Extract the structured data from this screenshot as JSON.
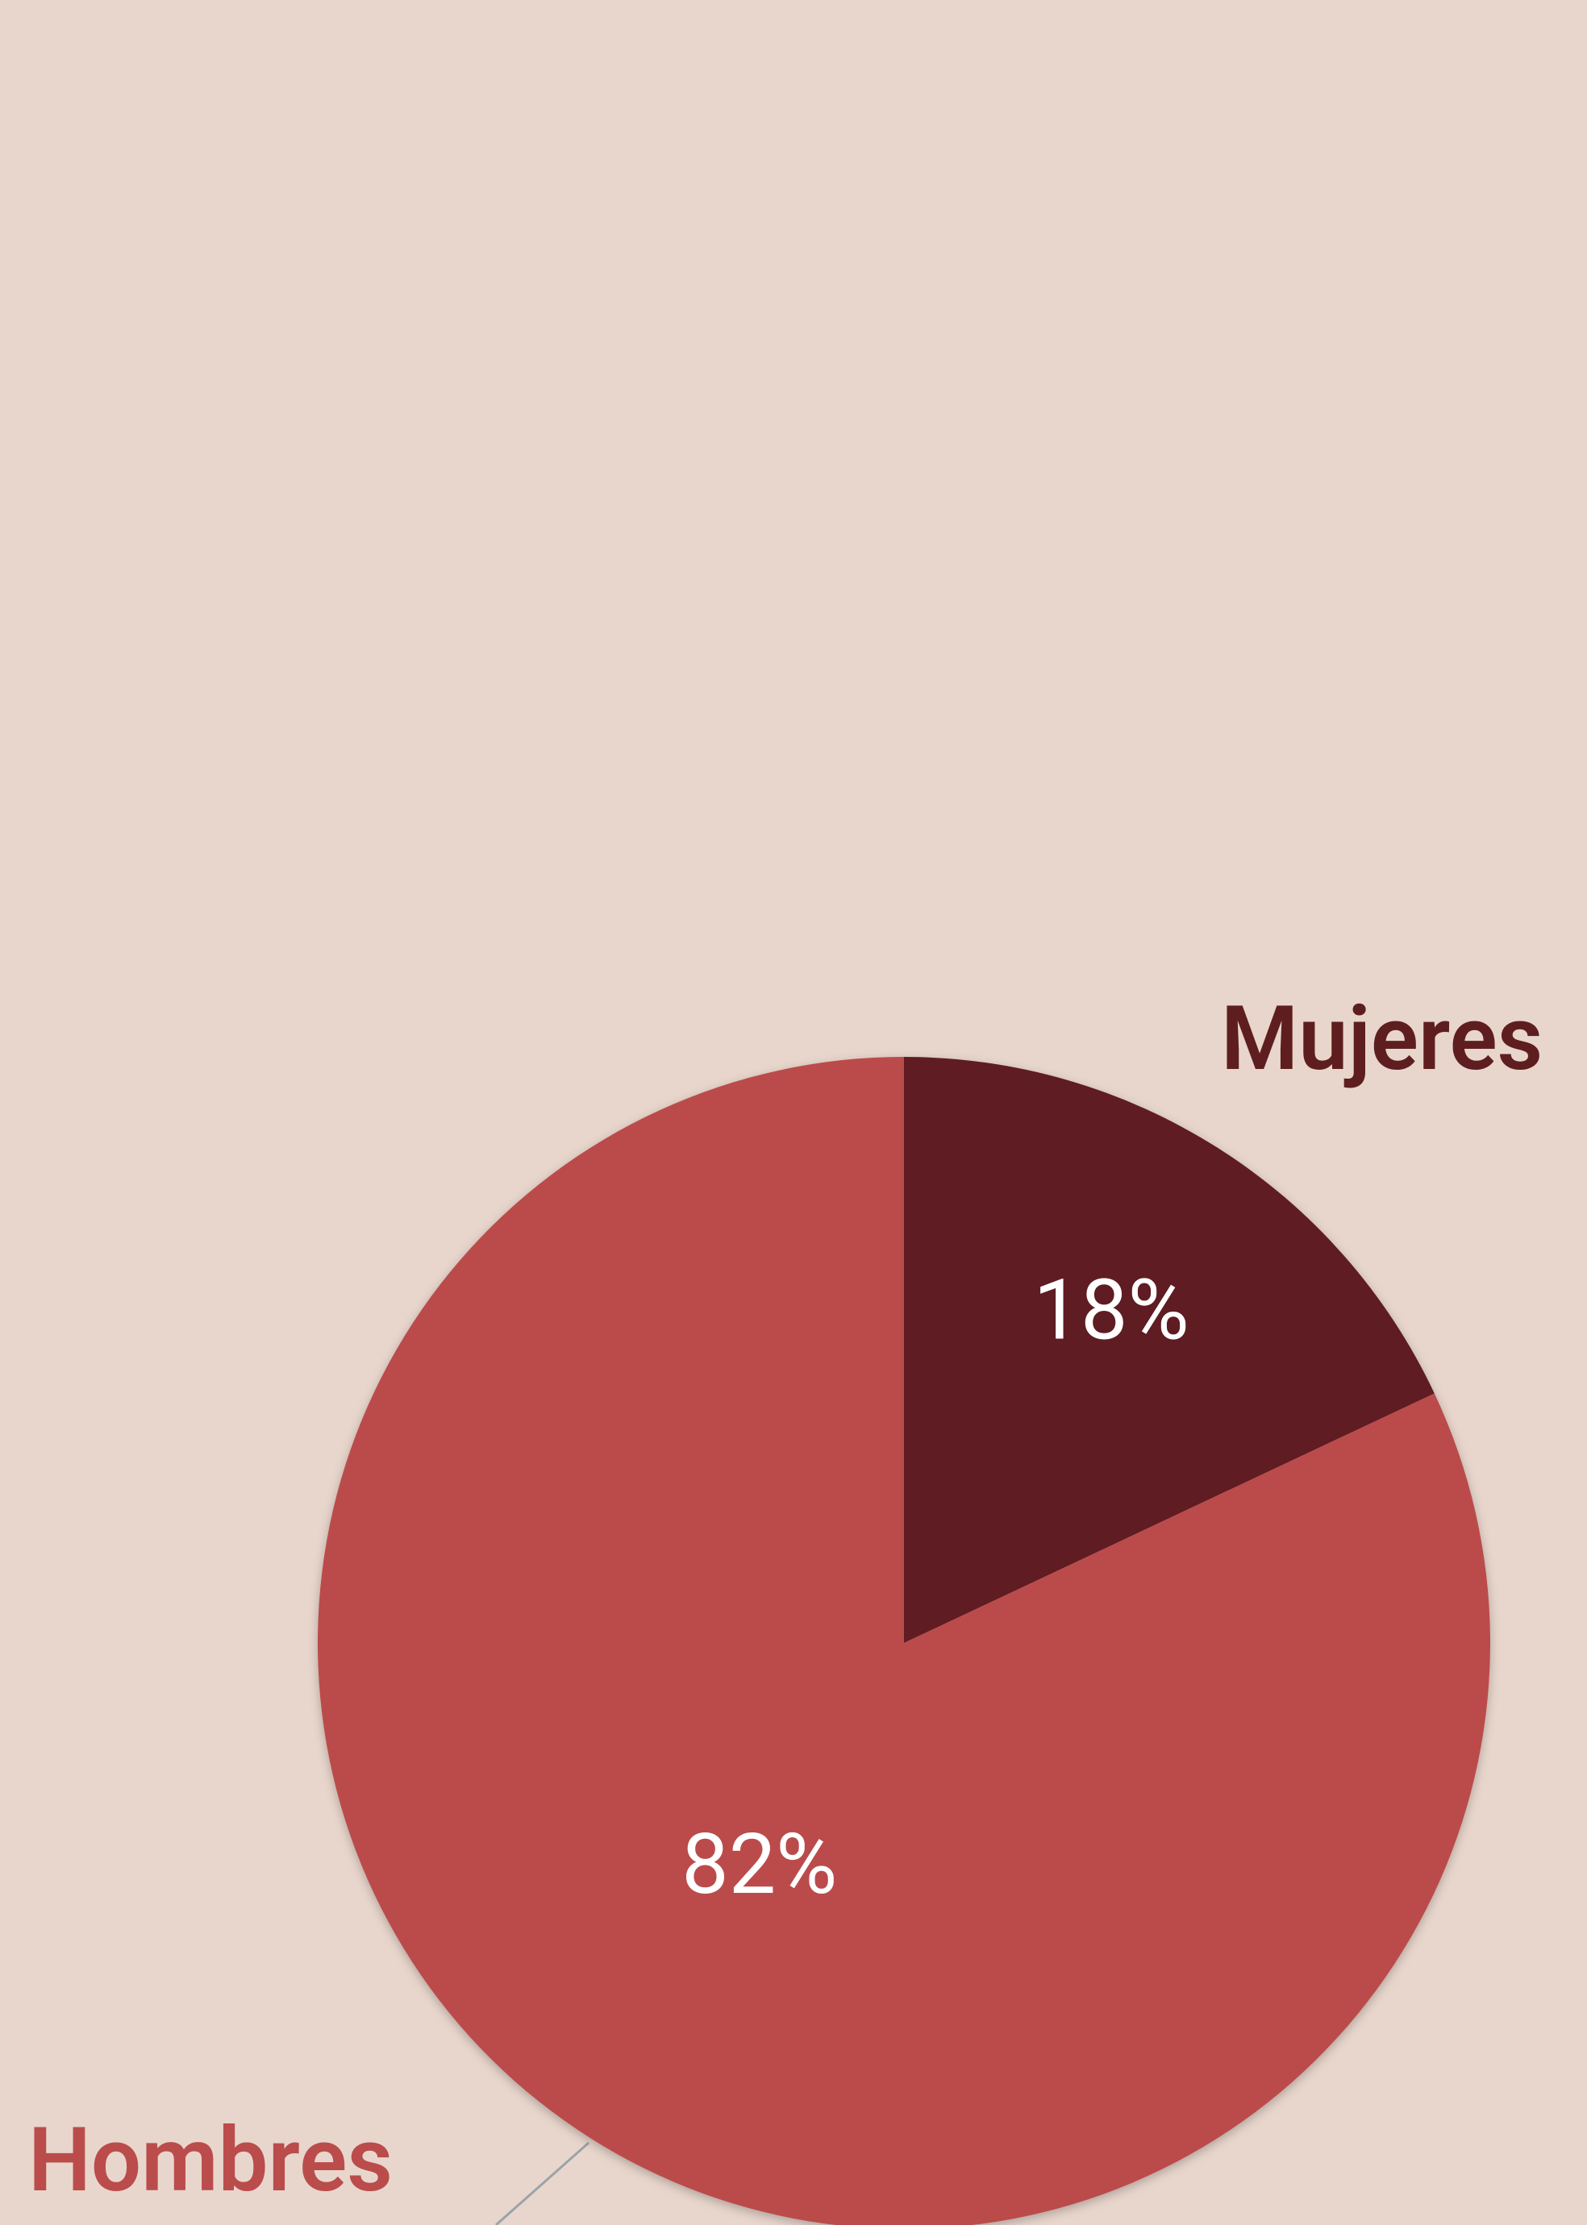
{
  "chart_data": {
    "type": "pie",
    "categories": [
      "Mujeres",
      "Hombres"
    ],
    "values": [
      18,
      82
    ],
    "value_labels": [
      "18%",
      "82%"
    ],
    "colors": [
      "#5e1e20",
      "#bb4c4c"
    ]
  }
}
